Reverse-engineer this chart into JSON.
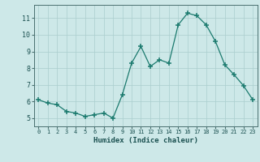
{
  "x": [
    0,
    1,
    2,
    3,
    4,
    5,
    6,
    7,
    8,
    9,
    10,
    11,
    12,
    13,
    14,
    15,
    16,
    17,
    18,
    19,
    20,
    21,
    22,
    23
  ],
  "y": [
    6.1,
    5.9,
    5.8,
    5.4,
    5.3,
    5.1,
    5.2,
    5.3,
    5.0,
    6.4,
    8.3,
    9.3,
    8.1,
    8.5,
    8.3,
    10.6,
    11.3,
    11.15,
    10.6,
    9.6,
    8.2,
    7.6,
    6.95,
    6.1
  ],
  "xlabel": "Humidex (Indice chaleur)",
  "xlim": [
    -0.5,
    23.5
  ],
  "ylim": [
    4.5,
    11.8
  ],
  "yticks": [
    5,
    6,
    7,
    8,
    9,
    10,
    11
  ],
  "xticks": [
    0,
    1,
    2,
    3,
    4,
    5,
    6,
    7,
    8,
    9,
    10,
    11,
    12,
    13,
    14,
    15,
    16,
    17,
    18,
    19,
    20,
    21,
    22,
    23
  ],
  "line_color": "#1b7a6e",
  "marker_color": "#1b7a6e",
  "bg_color": "#cde8e8",
  "grid_color": "#aacece",
  "axis_color": "#4a7070",
  "label_color": "#1a5050"
}
